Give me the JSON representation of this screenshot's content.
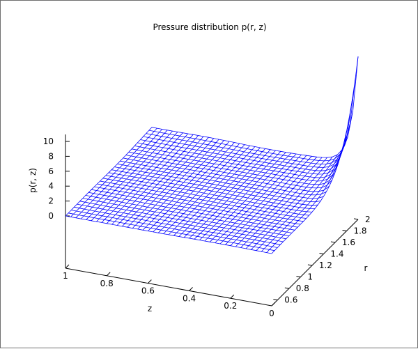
{
  "chart_data": {
    "type": "surface",
    "title": "Pressure distribution p(r, z)",
    "xlabel": "z",
    "ylabel": "r",
    "zlabel": "p(r, z)",
    "z_axis_ticks": [
      "0",
      "0.2",
      "0.4",
      "0.6",
      "0.8",
      "1"
    ],
    "r_axis_ticks": [
      "0.6",
      "0.8",
      "1",
      "1.2",
      "1.4",
      "1.6",
      "1.8",
      "2"
    ],
    "p_axis_ticks": [
      "0",
      "2",
      "4",
      "6",
      "8",
      "10"
    ],
    "z_range": [
      0,
      1
    ],
    "r_range": [
      0.5,
      2
    ],
    "p_range": [
      0,
      10
    ],
    "grid_z_count": 41,
    "grid_r_count": 31,
    "line_color": "#0000ff",
    "axis_color": "#000000"
  }
}
